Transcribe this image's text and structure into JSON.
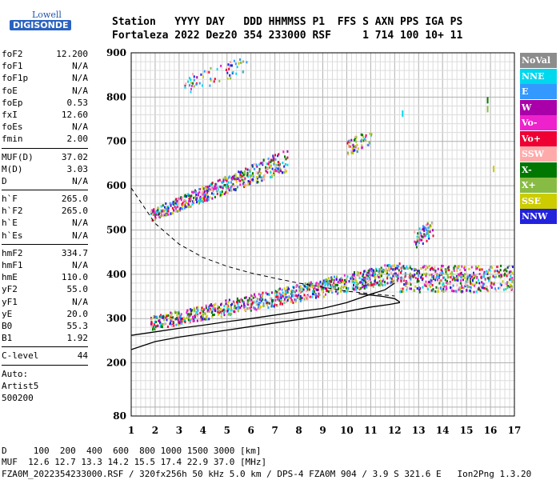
{
  "logo": {
    "line1": "Lowell",
    "line2": "DIGISONDE"
  },
  "header": {
    "row1": "Station   YYYY DAY   DDD HHMMSS P1  FFS S AXN PPS IGA PS",
    "row2": "Fortaleza 2022 Dez20 354 233000 RSF     1 714 100 10+ 11"
  },
  "params": [
    {
      "k": "foF2",
      "v": "12.200"
    },
    {
      "k": "foF1",
      "v": "N/A"
    },
    {
      "k": "foF1p",
      "v": "N/A"
    },
    {
      "k": "foE",
      "v": "N/A"
    },
    {
      "k": "foEp",
      "v": "0.53"
    },
    {
      "k": "fxI",
      "v": "12.60"
    },
    {
      "k": "foEs",
      "v": "N/A"
    },
    {
      "k": "fmin",
      "v": "2.00"
    },
    {
      "sep": true
    },
    {
      "k": "MUF(D)",
      "v": "37.02"
    },
    {
      "k": "M(D)",
      "v": "3.03"
    },
    {
      "k": "D",
      "v": "N/A"
    },
    {
      "sep": true
    },
    {
      "k": "h`F",
      "v": "265.0"
    },
    {
      "k": "h`F2",
      "v": "265.0"
    },
    {
      "k": "h`E",
      "v": "N/A"
    },
    {
      "k": "h`Es",
      "v": "N/A"
    },
    {
      "sep": true
    },
    {
      "k": "hmF2",
      "v": "334.7"
    },
    {
      "k": "hmF1",
      "v": "N/A"
    },
    {
      "k": "hmE",
      "v": "110.0"
    },
    {
      "k": "yF2",
      "v": "55.0"
    },
    {
      "k": "yF1",
      "v": "N/A"
    },
    {
      "k": "yE",
      "v": "20.0"
    },
    {
      "k": "B0",
      "v": "55.3"
    },
    {
      "k": "B1",
      "v": "1.92"
    },
    {
      "sep": true
    },
    {
      "k": "C-level",
      "v": "44"
    },
    {
      "sep": true
    },
    {
      "k": "Auto:",
      "v": ""
    },
    {
      "k": "Artist5",
      "v": ""
    },
    {
      "k": "500200",
      "v": ""
    }
  ],
  "legend": [
    {
      "label": "NoVal",
      "color": "#8c8c8c"
    },
    {
      "label": "NNE",
      "color": "#00d8ee"
    },
    {
      "label": "E",
      "color": "#3399ff"
    },
    {
      "label": "W",
      "color": "#aa00aa"
    },
    {
      "label": "Vo-",
      "color": "#ee22cc"
    },
    {
      "label": "Vo+",
      "color": "#ee0033"
    },
    {
      "label": "SSW",
      "color": "#ffaaaa"
    },
    {
      "label": "X-",
      "color": "#007700"
    },
    {
      "label": "X+",
      "color": "#88bb44"
    },
    {
      "label": "SSE",
      "color": "#cccc00"
    },
    {
      "label": "NNW",
      "color": "#2222dd"
    }
  ],
  "footer": {
    "row1": "D     100  200  400  600  800 1000 1500 3000 [km]",
    "row2": "MUF  12.6 12.7 13.3 14.2 15.5 17.4 22.9 37.0 [MHz]",
    "row3": "FZA0M_2022354233000.RSF / 320fx256h 50 kHz 5.0 km / DPS-4 FZA0M 904 / 3.9 S 321.6 E   Ion2Png 1.3.20"
  },
  "chart_data": {
    "type": "scatter",
    "xlabel": "",
    "ylabel": "",
    "xlim": [
      1,
      17
    ],
    "ylim": [
      80,
      900
    ],
    "x_ticks": [
      1,
      2,
      3,
      4,
      5,
      6,
      7,
      8,
      9,
      10,
      11,
      12,
      13,
      14,
      15,
      16,
      17
    ],
    "y_ticks": [
      80,
      200,
      300,
      400,
      500,
      600,
      700,
      800,
      900
    ],
    "grid": true,
    "legend_position": "right",
    "series": [
      {
        "name": "NoVal",
        "color": "#8c8c8c"
      },
      {
        "name": "NNE",
        "color": "#00d8ee"
      },
      {
        "name": "E",
        "color": "#3399ff"
      },
      {
        "name": "W",
        "color": "#aa00aa"
      },
      {
        "name": "Vo-",
        "color": "#ee22cc"
      },
      {
        "name": "Vo+",
        "color": "#ee0033"
      },
      {
        "name": "SSW",
        "color": "#ffaaaa"
      },
      {
        "name": "X-",
        "color": "#007700"
      },
      {
        "name": "X+",
        "color": "#88bb44"
      },
      {
        "name": "SSE",
        "color": "#cccc00"
      },
      {
        "name": "NNW",
        "color": "#2222dd"
      }
    ],
    "echo_regions": [
      {
        "x": [
          1.8,
          12.3
        ],
        "y_start": [
          285,
          400
        ],
        "spread": [
          30,
          45
        ],
        "density": 900
      },
      {
        "x": [
          1.8,
          7.5
        ],
        "y_start": [
          530,
          650
        ],
        "spread": [
          25,
          50
        ],
        "density": 500
      },
      {
        "x": [
          12.2,
          16.9
        ],
        "y_start": [
          380,
          380
        ],
        "spread": [
          60,
          60
        ],
        "density": 450
      },
      {
        "x": [
          3.2,
          5.8
        ],
        "y_start": [
          820,
          870
        ],
        "spread": [
          40,
          40
        ],
        "density": 60
      },
      {
        "x": [
          10.0,
          11.0
        ],
        "y_start": [
          680,
          700
        ],
        "spread": [
          40,
          40
        ],
        "density": 60
      },
      {
        "x": [
          12.8,
          13.6
        ],
        "y_start": [
          470,
          500
        ],
        "spread": [
          40,
          40
        ],
        "density": 60
      }
    ],
    "profile_curve": [
      [
        1.0,
        230
      ],
      [
        2,
        248
      ],
      [
        3,
        258
      ],
      [
        4,
        266
      ],
      [
        5,
        274
      ],
      [
        6,
        282
      ],
      [
        7,
        290
      ],
      [
        8,
        298
      ],
      [
        9,
        306
      ],
      [
        10,
        316
      ],
      [
        11,
        326
      ],
      [
        11.8,
        332
      ],
      [
        12.2,
        336
      ],
      [
        12.2,
        338
      ],
      [
        12.0,
        345
      ],
      [
        11.5,
        350
      ],
      [
        10.5,
        356
      ]
    ],
    "virtual_height_curve": [
      [
        1.0,
        262
      ],
      [
        2,
        270
      ],
      [
        3,
        278
      ],
      [
        4,
        285
      ],
      [
        5,
        293
      ],
      [
        6,
        300
      ],
      [
        7,
        308
      ],
      [
        8,
        316
      ],
      [
        9,
        323
      ],
      [
        10,
        336
      ],
      [
        11,
        355
      ],
      [
        11.6,
        365
      ],
      [
        12.0,
        380
      ]
    ],
    "dashed_curve": [
      [
        1.0,
        595
      ],
      [
        2,
        515
      ],
      [
        3,
        468
      ],
      [
        4,
        438
      ],
      [
        5,
        418
      ],
      [
        6,
        403
      ],
      [
        7,
        391
      ],
      [
        8,
        380
      ],
      [
        9,
        371
      ],
      [
        10,
        362
      ],
      [
        11,
        356
      ],
      [
        12,
        351
      ]
    ]
  }
}
